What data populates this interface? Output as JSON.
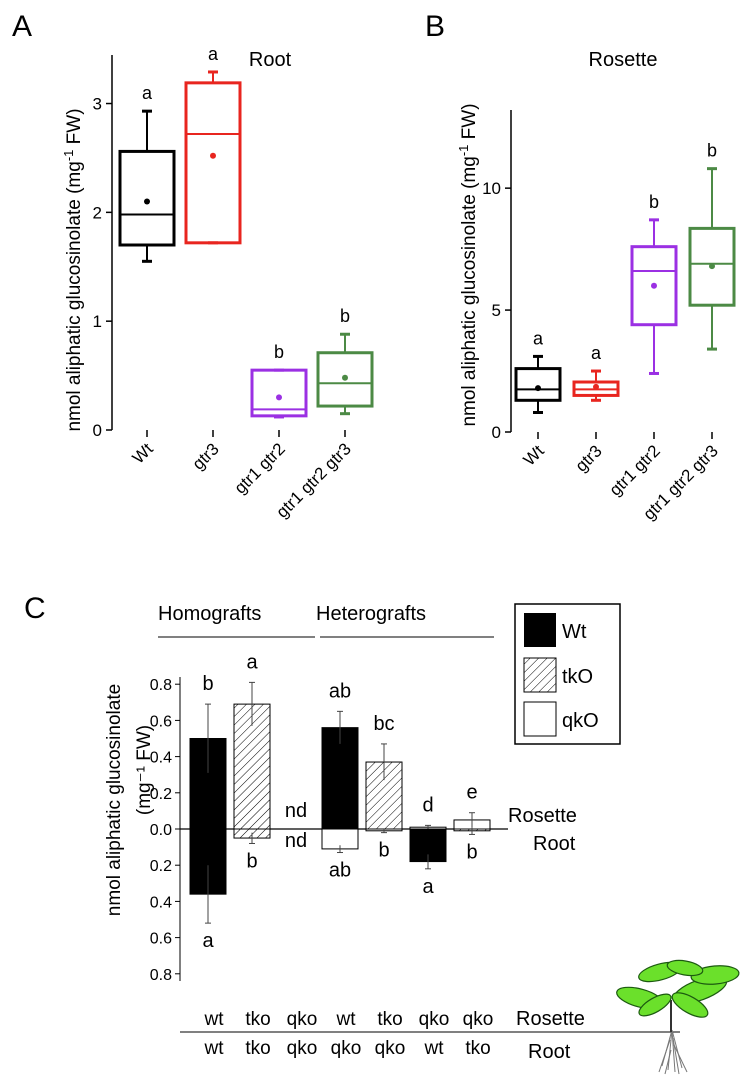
{
  "chart_data": [
    {
      "panel": "A",
      "type": "box",
      "title": "Root",
      "ylabel": "nmol aliphatic glucosinolate (mg⁻¹ FW)",
      "ylabel_main": "nmol aliphatic glucosinolate (mg",
      "ylabel_sup": "-1",
      "ylabel_tail": " FW)",
      "ylim": [
        0,
        3.4
      ],
      "yticks": [
        0,
        1,
        2,
        3
      ],
      "categories": [
        "Wt",
        "gtr3",
        "gtr1 gtr2",
        "gtr1 gtr2 gtr3"
      ],
      "boxes": [
        {
          "min": 1.55,
          "q1": 1.7,
          "median": 1.98,
          "q3": 2.56,
          "max": 2.93,
          "mean": 2.1,
          "letter": "a",
          "color": "#000000"
        },
        {
          "min": 1.72,
          "q1": 1.72,
          "median": 2.72,
          "q3": 3.19,
          "max": 3.29,
          "mean": 2.52,
          "letter": "a",
          "color": "#e8251f"
        },
        {
          "min": 0.12,
          "q1": 0.13,
          "median": 0.19,
          "q3": 0.55,
          "max": 0.55,
          "mean": 0.3,
          "letter": "b",
          "color": "#9b30e3"
        },
        {
          "min": 0.15,
          "q1": 0.22,
          "median": 0.43,
          "q3": 0.71,
          "max": 0.88,
          "mean": 0.48,
          "letter": "b",
          "color": "#4c8a45"
        }
      ]
    },
    {
      "panel": "B",
      "type": "box",
      "title": "Rosette",
      "ylabel": "nmol aliphatic glucosinolate (mg⁻¹ FW)",
      "ylabel_main": "nmol aliphatic glucosinolate (mg",
      "ylabel_sup": "-1",
      "ylabel_tail": " FW)",
      "ylim": [
        0,
        13
      ],
      "yticks": [
        0,
        5,
        10
      ],
      "categories": [
        "Wt",
        "gtr3",
        "gtr1 gtr2",
        "gtr1 gtr2 gtr3"
      ],
      "boxes": [
        {
          "min": 0.8,
          "q1": 1.3,
          "median": 1.75,
          "q3": 2.6,
          "max": 3.1,
          "mean": 1.8,
          "letter": "a",
          "color": "#000000"
        },
        {
          "min": 1.3,
          "q1": 1.5,
          "median": 1.75,
          "q3": 2.05,
          "max": 2.5,
          "mean": 1.85,
          "letter": "a",
          "color": "#e8251f"
        },
        {
          "min": 2.4,
          "q1": 4.4,
          "median": 6.6,
          "q3": 7.6,
          "max": 8.7,
          "mean": 6.0,
          "letter": "b",
          "color": "#9b30e3"
        },
        {
          "min": 3.4,
          "q1": 5.2,
          "median": 6.9,
          "q3": 8.35,
          "max": 10.8,
          "mean": 6.8,
          "letter": "b",
          "color": "#4c8a45"
        }
      ]
    },
    {
      "panel": "C",
      "type": "bar",
      "ylabel_line1": "nmol aliphatic glucosinolate",
      "ylabel_line2": "(mg⁻¹ FW)",
      "yticks_top": [
        "0.0",
        "0.2",
        "0.4",
        "0.6",
        "0.8"
      ],
      "yticks_bottom": [
        "0.2",
        "0.4",
        "0.6",
        "0.8"
      ],
      "ylim": [
        -0.8,
        0.8
      ],
      "group_labels": [
        "Homografts",
        "Heterografts"
      ],
      "side_labels": [
        "Rosette",
        "Root"
      ],
      "legend": [
        "Wt",
        "tkO",
        "qkO"
      ],
      "series_fill_legend": {
        "Wt": "solid",
        "tkO": "hatched",
        "qkO": "open"
      },
      "bars": [
        {
          "rosette": "wt",
          "root": "wt",
          "rosette_fill": "solid",
          "root_fill": "solid",
          "rosette_value": 0.5,
          "rosette_err": 0.19,
          "root_value": -0.36,
          "root_err": 0.16,
          "rosette_letter": "b",
          "root_letter": "a"
        },
        {
          "rosette": "tko",
          "root": "tko",
          "rosette_fill": "hatched",
          "root_fill": "hatched",
          "rosette_value": 0.69,
          "rosette_err": 0.12,
          "root_value": -0.05,
          "root_err": 0.03,
          "rosette_letter": "a",
          "root_letter": "b"
        },
        {
          "rosette": "qko",
          "root": "qko",
          "rosette_fill": "none",
          "root_fill": "none",
          "rosette_value": 0.0,
          "rosette_err": 0.0,
          "root_value": 0.0,
          "root_err": 0.0,
          "rosette_letter": "nd",
          "root_letter": "nd"
        },
        {
          "rosette": "wt",
          "root": "qko",
          "rosette_fill": "solid",
          "root_fill": "open",
          "rosette_value": 0.56,
          "rosette_err": 0.09,
          "root_value": -0.11,
          "root_err": 0.02,
          "rosette_letter": "ab",
          "root_letter": "ab"
        },
        {
          "rosette": "tko",
          "root": "qko",
          "rosette_fill": "hatched",
          "root_fill": "open",
          "rosette_value": 0.37,
          "rosette_err": 0.1,
          "root_value": -0.01,
          "root_err": 0.01,
          "rosette_letter": "bc",
          "root_letter": "b"
        },
        {
          "rosette": "qko",
          "root": "wt",
          "rosette_fill": "open",
          "root_fill": "solid",
          "rosette_value": 0.01,
          "rosette_err": 0.01,
          "root_value": -0.18,
          "root_err": 0.04,
          "rosette_letter": "d",
          "root_letter": "a"
        },
        {
          "rosette": "qko",
          "root": "tko",
          "rosette_fill": "open",
          "root_fill": "hatched",
          "rosette_value": 0.05,
          "rosette_err": 0.04,
          "root_value": -0.01,
          "root_err": 0.02,
          "rosette_letter": "e",
          "root_letter": "b"
        }
      ]
    }
  ],
  "panel_labels": [
    "A",
    "B",
    "C"
  ]
}
